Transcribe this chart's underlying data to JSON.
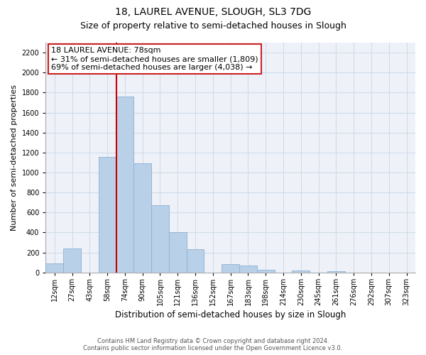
{
  "title": "18, LAUREL AVENUE, SLOUGH, SL3 7DG",
  "subtitle": "Size of property relative to semi-detached houses in Slough",
  "xlabel": "Distribution of semi-detached houses by size in Slough",
  "ylabel": "Number of semi-detached properties",
  "bin_labels": [
    "12sqm",
    "27sqm",
    "43sqm",
    "58sqm",
    "74sqm",
    "90sqm",
    "105sqm",
    "121sqm",
    "136sqm",
    "152sqm",
    "167sqm",
    "183sqm",
    "198sqm",
    "214sqm",
    "230sqm",
    "245sqm",
    "261sqm",
    "276sqm",
    "292sqm",
    "307sqm",
    "323sqm"
  ],
  "bar_values": [
    90,
    240,
    0,
    1155,
    1760,
    1090,
    670,
    400,
    230,
    0,
    85,
    70,
    30,
    0,
    20,
    0,
    15,
    0,
    0,
    0,
    0
  ],
  "bar_color": "#b8d0e8",
  "bar_edge_color": "#8fb0d0",
  "grid_color": "#d0dce8",
  "vline_color": "#cc0000",
  "vline_index": 4,
  "annotation_title": "18 LAUREL AVENUE: 78sqm",
  "annotation_line1": "← 31% of semi-detached houses are smaller (1,809)",
  "annotation_line2": "69% of semi-detached houses are larger (4,038) →",
  "ylim": [
    0,
    2300
  ],
  "yticks": [
    0,
    200,
    400,
    600,
    800,
    1000,
    1200,
    1400,
    1600,
    1800,
    2000,
    2200
  ],
  "footer1": "Contains HM Land Registry data © Crown copyright and database right 2024.",
  "footer2": "Contains public sector information licensed under the Open Government Licence v3.0.",
  "title_fontsize": 10,
  "subtitle_fontsize": 9,
  "xlabel_fontsize": 8.5,
  "ylabel_fontsize": 8,
  "tick_fontsize": 7,
  "footer_fontsize": 6,
  "annotation_fontsize": 8
}
